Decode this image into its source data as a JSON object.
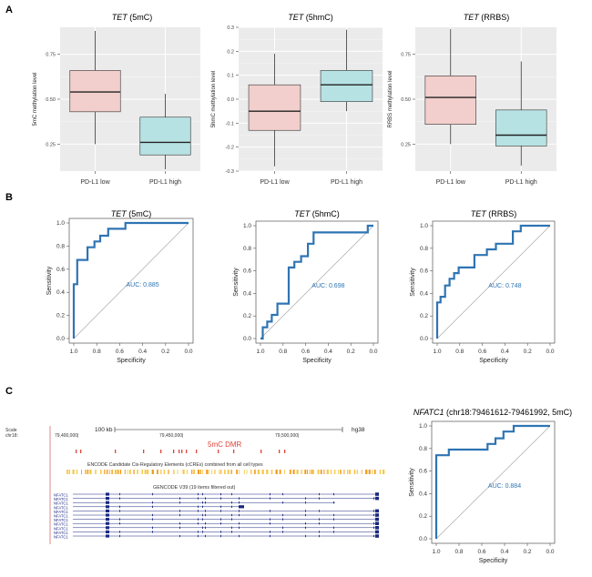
{
  "panel_labels": [
    "A",
    "B",
    "C"
  ],
  "chart_data": [
    {
      "id": "box-5mc",
      "type": "box",
      "title_gene": "TET",
      "title_suffix": " (5mC)",
      "ylabel": "5mC methylation level",
      "categories": [
        "PD-L1 low",
        "PD-L1 high"
      ],
      "yticks": [
        "0.25",
        "0.50",
        "0.75"
      ],
      "ytick_values": [
        0.25,
        0.5,
        0.75
      ],
      "ylim": [
        0.1,
        0.9
      ],
      "boxes": [
        {
          "name": "PD-L1 low",
          "whisker_low": 0.25,
          "q1": 0.43,
          "median": 0.54,
          "q3": 0.66,
          "whisker_high": 0.88,
          "color": "#f2cfcc"
        },
        {
          "name": "PD-L1 high",
          "whisker_low": 0.11,
          "q1": 0.19,
          "median": 0.26,
          "q3": 0.4,
          "whisker_high": 0.53,
          "color": "#b7e2e3"
        }
      ],
      "grid": true
    },
    {
      "id": "box-5hmc",
      "type": "box",
      "title_gene": "TET",
      "title_suffix": " (5hmC)",
      "ylabel": "5hmC methylation level",
      "categories": [
        "PD-L1 low",
        "PD-L1 high"
      ],
      "yticks": [
        "-0.3",
        "-0.2",
        "-0.1",
        "0.0",
        "0.1",
        "0.2",
        "0.3"
      ],
      "ytick_values": [
        -0.3,
        -0.2,
        -0.1,
        0.0,
        0.1,
        0.2,
        0.3
      ],
      "ylim": [
        -0.3,
        0.3
      ],
      "boxes": [
        {
          "name": "PD-L1 low",
          "whisker_low": -0.28,
          "q1": -0.13,
          "median": -0.05,
          "q3": 0.06,
          "whisker_high": 0.19,
          "color": "#f2cfcc"
        },
        {
          "name": "PD-L1 high",
          "whisker_low": -0.05,
          "q1": -0.01,
          "median": 0.06,
          "q3": 0.12,
          "whisker_high": 0.29,
          "color": "#b7e2e3"
        }
      ],
      "grid": true
    },
    {
      "id": "box-rrbs",
      "type": "box",
      "title_gene": "TET",
      "title_suffix": " (RRBS)",
      "ylabel": "RRBS methylation level",
      "categories": [
        "PD-L1 low",
        "PD-L1 high"
      ],
      "yticks": [
        "0.25",
        "0.50",
        "0.75"
      ],
      "ytick_values": [
        0.25,
        0.5,
        0.75
      ],
      "ylim": [
        0.1,
        0.9
      ],
      "boxes": [
        {
          "name": "PD-L1 low",
          "whisker_low": 0.25,
          "q1": 0.36,
          "median": 0.51,
          "q3": 0.63,
          "whisker_high": 0.89,
          "color": "#f2cfcc"
        },
        {
          "name": "PD-L1 high",
          "whisker_low": 0.13,
          "q1": 0.24,
          "median": 0.3,
          "q3": 0.44,
          "whisker_high": 0.71,
          "color": "#b7e2e3"
        }
      ],
      "grid": true
    },
    {
      "id": "roc-5mc",
      "type": "line",
      "title_gene": "TET",
      "title_suffix": " (5mC)",
      "xlabel": "Specificity",
      "ylabel": "Sensitivity",
      "xticks": [
        "1.0",
        "0.8",
        "0.6",
        "0.4",
        "0.2",
        "0.0"
      ],
      "yticks": [
        "0.0",
        "0.2",
        "0.4",
        "0.6",
        "0.8",
        "1.0"
      ],
      "xlim": [
        1.0,
        0.0
      ],
      "ylim": [
        0.0,
        1.0
      ],
      "auc_label": "AUC: 0.885",
      "series": [
        {
          "x": [
            1.0,
            1.0,
            0.97,
            0.97,
            0.88,
            0.88,
            0.82,
            0.82,
            0.77,
            0.77,
            0.7,
            0.7,
            0.63,
            0.63,
            0.55,
            0.55,
            0.48,
            0.48,
            0.0
          ],
          "y": [
            0.0,
            0.47,
            0.47,
            0.68,
            0.68,
            0.79,
            0.79,
            0.84,
            0.84,
            0.89,
            0.89,
            0.95,
            0.95,
            0.95,
            0.95,
            1.0,
            1.0,
            1.0,
            1.0
          ]
        }
      ],
      "line_color": "#2f74b3"
    },
    {
      "id": "roc-5hmc",
      "type": "line",
      "title_gene": "TET",
      "title_suffix": " (5hmC)",
      "xlabel": "Specificity",
      "ylabel": "Sensitivity",
      "xticks": [
        "1.0",
        "0.8",
        "0.6",
        "0.4",
        "0.2",
        "0.0"
      ],
      "yticks": [
        "0.0",
        "0.2",
        "0.4",
        "0.6",
        "0.8",
        "1.0"
      ],
      "xlim": [
        1.0,
        0.0
      ],
      "ylim": [
        0.0,
        1.0
      ],
      "auc_label": "AUC: 0.698",
      "series": [
        {
          "x": [
            1.0,
            0.98,
            0.98,
            0.94,
            0.94,
            0.9,
            0.9,
            0.85,
            0.85,
            0.75,
            0.75,
            0.7,
            0.7,
            0.64,
            0.64,
            0.58,
            0.58,
            0.53,
            0.53,
            0.45,
            0.45,
            0.05,
            0.05,
            0.0
          ],
          "y": [
            0.0,
            0.0,
            0.1,
            0.1,
            0.15,
            0.15,
            0.21,
            0.21,
            0.31,
            0.31,
            0.63,
            0.63,
            0.68,
            0.68,
            0.73,
            0.73,
            0.84,
            0.84,
            0.94,
            0.94,
            0.94,
            0.94,
            1.0,
            1.0
          ]
        }
      ],
      "line_color": "#2f74b3"
    },
    {
      "id": "roc-rrbs",
      "type": "line",
      "title_gene": "TET",
      "title_suffix": " (RRBS)",
      "xlabel": "Specificity",
      "ylabel": "Sensitivity",
      "xticks": [
        "1.0",
        "0.8",
        "0.6",
        "0.4",
        "0.2",
        "0.0"
      ],
      "yticks": [
        "0.0",
        "0.2",
        "0.4",
        "0.6",
        "0.8",
        "1.0"
      ],
      "xlim": [
        1.0,
        0.0
      ],
      "ylim": [
        0.0,
        1.0
      ],
      "auc_label": "AUC: 0.748",
      "series": [
        {
          "x": [
            1.0,
            1.0,
            0.97,
            0.97,
            0.93,
            0.93,
            0.89,
            0.89,
            0.85,
            0.85,
            0.81,
            0.81,
            0.67,
            0.67,
            0.56,
            0.56,
            0.48,
            0.48,
            0.33,
            0.33,
            0.26,
            0.26,
            0.0
          ],
          "y": [
            0.0,
            0.32,
            0.32,
            0.37,
            0.37,
            0.47,
            0.47,
            0.53,
            0.53,
            0.58,
            0.58,
            0.63,
            0.63,
            0.74,
            0.74,
            0.79,
            0.79,
            0.84,
            0.84,
            0.95,
            0.95,
            1.0,
            1.0
          ]
        }
      ],
      "line_color": "#2f74b3"
    },
    {
      "id": "roc-nfatc1",
      "type": "line",
      "title_gene": "NFATC1",
      "title_suffix": " (chr18:79461612-79461992, 5mC)",
      "xlabel": "Specificity",
      "ylabel": "Sensitivity",
      "xticks": [
        "1.0",
        "0.8",
        "0.6",
        "0.4",
        "0.2",
        "0.0"
      ],
      "yticks": [
        "0.0",
        "0.2",
        "0.4",
        "0.6",
        "0.8",
        "1.0"
      ],
      "xlim": [
        1.0,
        0.0
      ],
      "ylim": [
        0.0,
        1.0
      ],
      "auc_label": "AUC: 0.884",
      "series": [
        {
          "x": [
            1.0,
            1.0,
            0.97,
            0.97,
            0.89,
            0.89,
            0.55,
            0.55,
            0.48,
            0.48,
            0.41,
            0.41,
            0.37,
            0.37,
            0.32,
            0.32,
            0.0
          ],
          "y": [
            0.0,
            0.74,
            0.74,
            0.74,
            0.74,
            0.79,
            0.79,
            0.84,
            0.84,
            0.89,
            0.89,
            0.95,
            0.95,
            0.95,
            0.95,
            1.0,
            1.0
          ]
        }
      ],
      "line_color": "#2f74b3"
    }
  ],
  "genome_browser": {
    "scale_label": "Scale",
    "chrom_label": "chr18:",
    "scale_bar_label": "100 kb",
    "assembly": "hg38",
    "coords": [
      "79,400,000|",
      "79,450,000|",
      "79,500,000|"
    ],
    "dmr_label": "5mC DMR",
    "encode_label": "ENCODE Candidate Cis-Regulatory Elements (cCREs) combined from all cell types",
    "gencode_label": "GENCODE V39 (19 items filtered out)",
    "transcript_labels": [
      "NFATC1",
      "NFATC1",
      "NFATC1",
      "NFATC1",
      "NFATC1",
      "NFATC1",
      "NFATC1",
      "NFATC1",
      "NFATC1",
      "NFATC1",
      "NFATC1"
    ],
    "colors": {
      "dmr": "#e0453a",
      "encode_a": "#f29b1c",
      "encode_b": "#f5c84a",
      "gene": "#1a2780"
    }
  }
}
